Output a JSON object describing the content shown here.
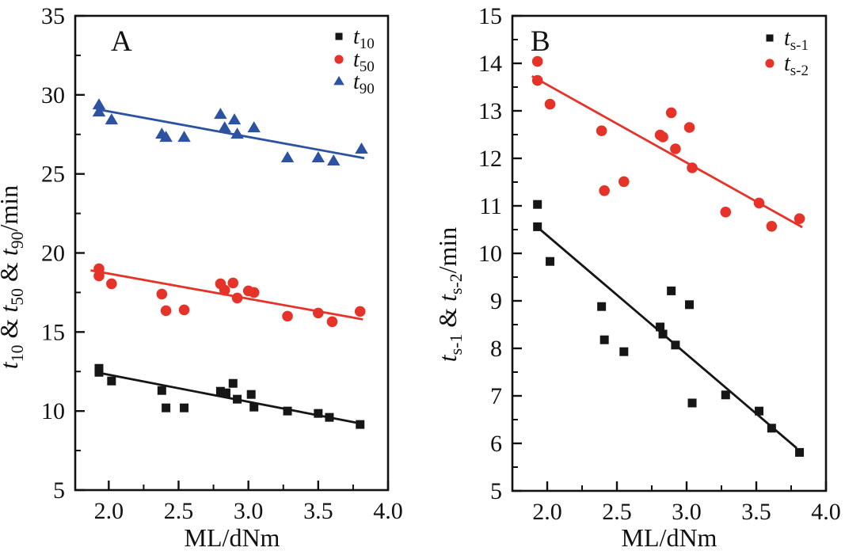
{
  "figure": {
    "background": "#ffffff",
    "frame_color": "#111111",
    "xlabel": "ML/dNm"
  },
  "chart_data": [
    {
      "panel_label": "A",
      "type": "scatter",
      "xlabel": "ML/dNm",
      "ylabel": "t10 & t50 & t90/min",
      "ylabel_segments": [
        {
          "text": "t",
          "italic": true
        },
        {
          "text": "10",
          "sub": true
        },
        {
          "text": " & "
        },
        {
          "text": "t",
          "italic": true
        },
        {
          "text": "50",
          "sub": true
        },
        {
          "text": " & "
        },
        {
          "text": "t",
          "italic": true
        },
        {
          "text": "90",
          "sub": true
        },
        {
          "text": "/min"
        }
      ],
      "xlim": [
        1.76,
        4.0
      ],
      "ylim": [
        5,
        35
      ],
      "x_major_ticks": [
        2.0,
        2.5,
        3.0,
        3.5,
        4.0
      ],
      "x_tick_labels": [
        "2.0",
        "2.5",
        "3.0",
        "3.5",
        "4.0"
      ],
      "x_minor_step": 0.25,
      "y_major_ticks": [
        5,
        10,
        15,
        20,
        25,
        30,
        35
      ],
      "y_tick_labels": [
        "5",
        "10",
        "15",
        "20",
        "25",
        "30",
        "35"
      ],
      "y_minor_step": 2.5,
      "legend_position": "top-right",
      "grid": false,
      "series": [
        {
          "name": "t10",
          "label": "t10",
          "label_segments": [
            {
              "text": "t",
              "italic": true
            },
            {
              "text": "10",
              "sub": true
            }
          ],
          "marker": "square",
          "color": "#161616",
          "x": [
            1.93,
            1.93,
            2.02,
            2.38,
            2.41,
            2.54,
            2.8,
            2.84,
            2.89,
            2.92,
            3.02,
            3.04,
            3.28,
            3.5,
            3.58,
            3.8
          ],
          "y": [
            12.7,
            12.45,
            11.9,
            11.3,
            10.2,
            10.2,
            11.25,
            11.15,
            11.75,
            10.75,
            11.05,
            10.25,
            10.0,
            9.85,
            9.6,
            9.15
          ],
          "fit_line": {
            "x1": 1.91,
            "y1": 12.45,
            "x2": 3.81,
            "y2": 9.2
          }
        },
        {
          "name": "t50",
          "label": "t50",
          "label_segments": [
            {
              "text": "t",
              "italic": true
            },
            {
              "text": "50",
              "sub": true
            }
          ],
          "marker": "circle",
          "color": "#e6332a",
          "x": [
            1.93,
            1.93,
            2.02,
            2.38,
            2.41,
            2.54,
            2.8,
            2.83,
            2.89,
            2.92,
            3.0,
            3.04,
            3.28,
            3.5,
            3.6,
            3.8
          ],
          "y": [
            19.0,
            18.55,
            18.05,
            17.4,
            16.35,
            16.4,
            18.05,
            17.65,
            18.1,
            17.15,
            17.6,
            17.5,
            16.0,
            16.2,
            15.65,
            16.3
          ],
          "fit_line": {
            "x1": 1.87,
            "y1": 18.9,
            "x2": 3.82,
            "y2": 15.8
          }
        },
        {
          "name": "t90",
          "label": "t90",
          "label_segments": [
            {
              "text": "t",
              "italic": true
            },
            {
              "text": "90",
              "sub": true
            }
          ],
          "marker": "triangle",
          "color": "#2e52a2",
          "x": [
            1.93,
            1.93,
            2.02,
            2.38,
            2.41,
            2.54,
            2.8,
            2.83,
            2.9,
            2.92,
            3.04,
            3.28,
            3.5,
            3.61,
            3.81
          ],
          "y": [
            29.35,
            28.9,
            28.4,
            27.5,
            27.3,
            27.3,
            28.75,
            27.9,
            28.4,
            27.5,
            27.9,
            26.0,
            26.0,
            25.8,
            26.55
          ],
          "fit_line": {
            "x1": 1.91,
            "y1": 29.1,
            "x2": 3.83,
            "y2": 26.0
          }
        }
      ]
    },
    {
      "panel_label": "B",
      "type": "scatter",
      "xlabel": "ML/dNm",
      "ylabel": "ts-1 & ts-2/min",
      "ylabel_segments": [
        {
          "text": "t",
          "italic": true
        },
        {
          "text": "s-1",
          "sub": true
        },
        {
          "text": " & "
        },
        {
          "text": "t",
          "italic": true
        },
        {
          "text": "s-2",
          "sub": true
        },
        {
          "text": "/min"
        }
      ],
      "xlim": [
        1.75,
        4.0
      ],
      "ylim": [
        5,
        15
      ],
      "x_major_ticks": [
        2.0,
        2.5,
        3.0,
        3.5,
        4.0
      ],
      "x_tick_labels": [
        "2.0",
        "2.5",
        "3.0",
        "3.5",
        "4.0"
      ],
      "x_minor_step": 0.25,
      "y_major_ticks": [
        5,
        6,
        7,
        8,
        9,
        10,
        11,
        12,
        13,
        14,
        15
      ],
      "y_tick_labels": [
        "5",
        "6",
        "7",
        "8",
        "9",
        "10",
        "11",
        "12",
        "13",
        "14",
        "15"
      ],
      "y_minor_step": 0.5,
      "legend_position": "top-right",
      "grid": false,
      "series": [
        {
          "name": "ts-1",
          "label": "ts-1",
          "label_segments": [
            {
              "text": "t",
              "italic": true
            },
            {
              "text": "s-1",
              "sub": true
            }
          ],
          "marker": "square",
          "color": "#161616",
          "x": [
            1.93,
            1.93,
            2.02,
            2.39,
            2.41,
            2.55,
            2.81,
            2.83,
            2.89,
            2.92,
            3.02,
            3.04,
            3.28,
            3.52,
            3.61,
            3.81
          ],
          "y": [
            11.03,
            10.56,
            9.83,
            8.88,
            8.18,
            7.93,
            8.45,
            8.3,
            9.21,
            8.07,
            8.92,
            6.85,
            7.02,
            6.68,
            6.32,
            5.81
          ],
          "fit_line": {
            "x1": 1.95,
            "y1": 10.5,
            "x2": 3.79,
            "y2": 5.9
          }
        },
        {
          "name": "ts-2",
          "label": "ts-2",
          "label_segments": [
            {
              "text": "t",
              "italic": true
            },
            {
              "text": "s-2",
              "sub": true
            }
          ],
          "marker": "circle",
          "color": "#e6332a",
          "x": [
            1.93,
            1.93,
            2.02,
            2.39,
            2.41,
            2.55,
            2.81,
            2.83,
            2.89,
            2.92,
            3.02,
            3.04,
            3.28,
            3.52,
            3.61,
            3.81
          ],
          "y": [
            14.04,
            13.64,
            13.14,
            12.58,
            11.32,
            11.51,
            12.49,
            12.45,
            12.96,
            12.2,
            12.65,
            11.8,
            10.87,
            11.06,
            10.57,
            10.73
          ],
          "fit_line": {
            "x1": 1.89,
            "y1": 13.73,
            "x2": 3.83,
            "y2": 10.55
          }
        }
      ]
    }
  ]
}
